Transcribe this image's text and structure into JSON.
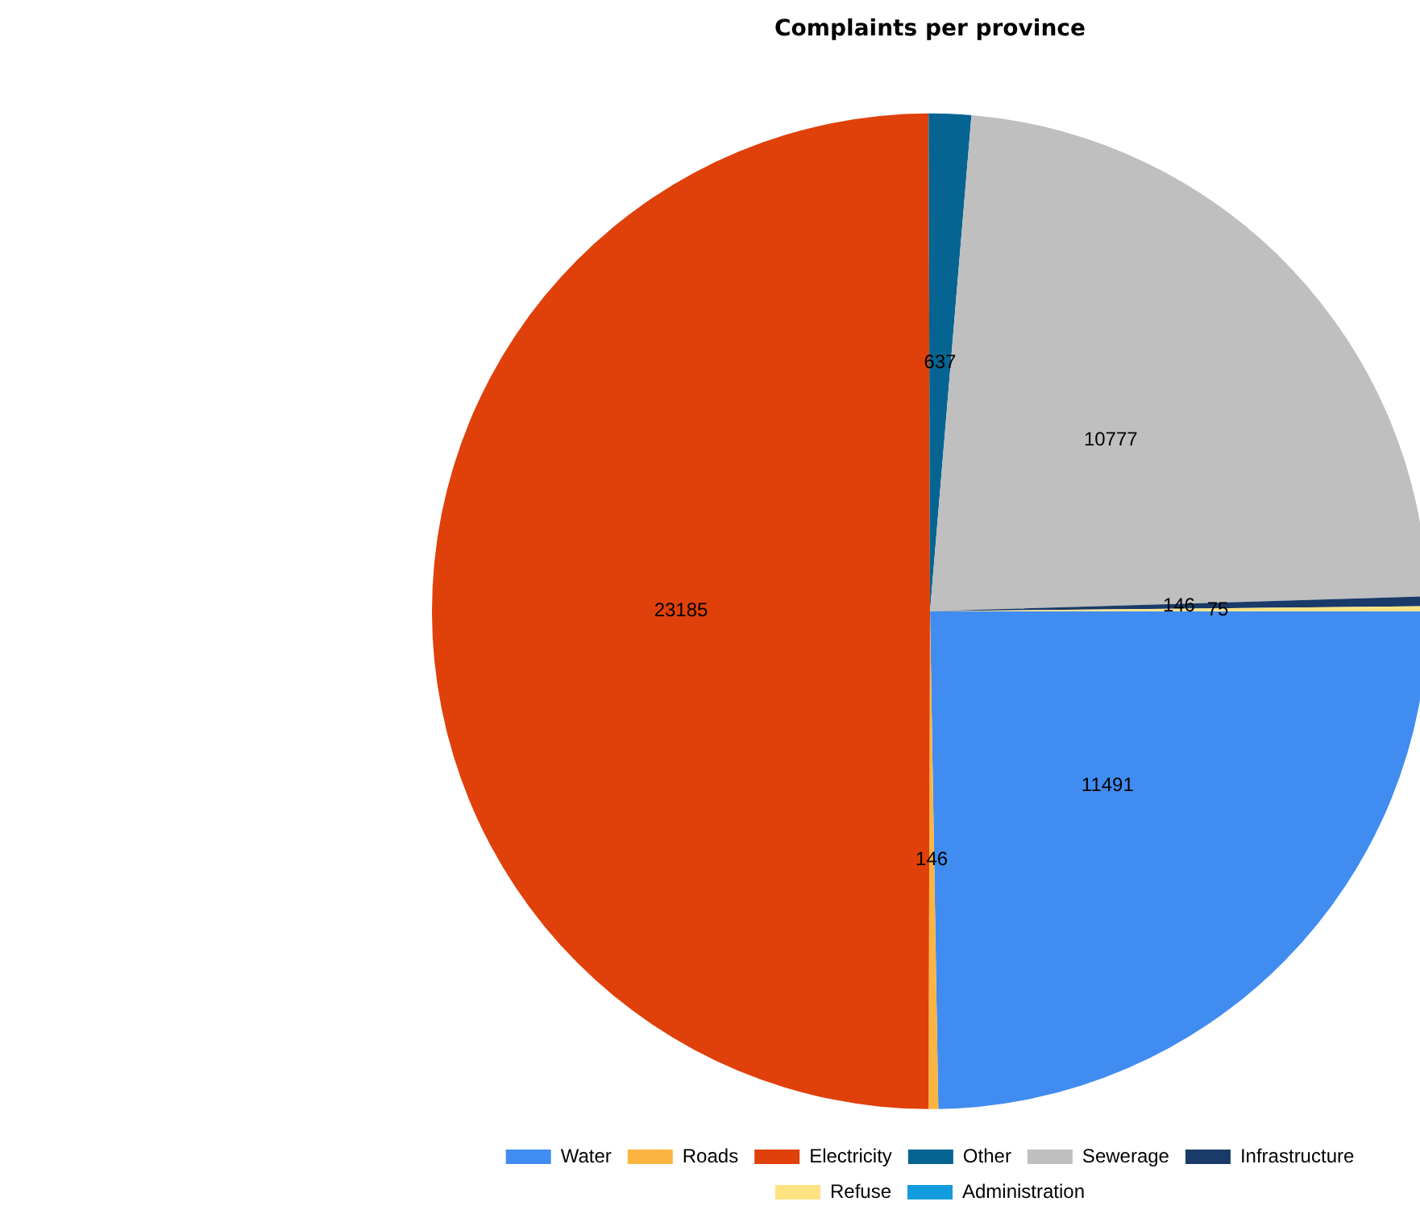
{
  "chart_data": {
    "type": "pie",
    "title": "Complaints per province",
    "categories": [
      "Water",
      "Roads",
      "Electricity",
      "Other",
      "Sewerage",
      "Infrastructure",
      "Refuse",
      "Administration"
    ],
    "values": [
      11491,
      146,
      23185,
      637,
      10777,
      146,
      75,
      null
    ],
    "colors": [
      "#418cf0",
      "#fcb441",
      "#e0400a",
      "#056492",
      "#bfbfbf",
      "#1a3b69",
      "#ffe382",
      "#129cdd"
    ],
    "data_labels": true,
    "legend": "bottom"
  }
}
